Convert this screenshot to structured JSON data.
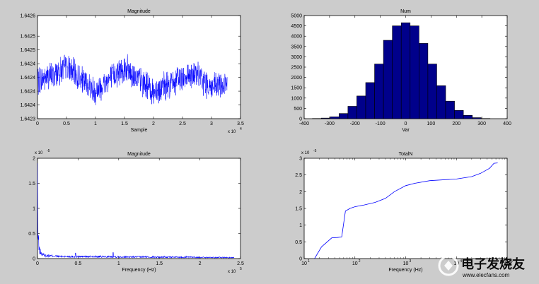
{
  "watermark": {
    "text": "电子发烧友",
    "subtext": "www.elecfans.com"
  },
  "chart_data": [
    {
      "type": "line",
      "title": "Magnitude",
      "xlabel": "Sample",
      "ylabel": "",
      "x_exponent_label": "x 10",
      "x_exponent": "4",
      "xlim": [
        0,
        3.5
      ],
      "ylim": [
        1.6423,
        1.6426
      ],
      "xticks": [
        "0",
        "0.5",
        "1",
        "1.5",
        "2",
        "2.5",
        "3",
        "3.5"
      ],
      "yticks": [
        "1.6423",
        "1.6424",
        "1.6424",
        "1.6424",
        "1.6424",
        "1.6425",
        "1.6425",
        "1.6426"
      ],
      "yticks_values": [
        1.6423,
        1.64234,
        1.64238,
        1.64242,
        1.64246,
        1.6425,
        1.64254,
        1.6426
      ],
      "series": [
        {
          "color": "#0000ff",
          "x_end": 3.27,
          "mean_profile": [
            [
              0,
              1.64241
            ],
            [
              0.3,
              1.64243
            ],
            [
              0.5,
              1.64245
            ],
            [
              0.7,
              1.64242
            ],
            [
              1.0,
              1.64238
            ],
            [
              1.2,
              1.64241
            ],
            [
              1.5,
              1.64245
            ],
            [
              1.7,
              1.64242
            ],
            [
              2.0,
              1.64238
            ],
            [
              2.3,
              1.6424
            ],
            [
              2.6,
              1.64243
            ],
            [
              2.8,
              1.64242
            ],
            [
              3.0,
              1.64239
            ],
            [
              3.27,
              1.6424
            ]
          ],
          "noise_band": 4e-05
        }
      ],
      "grid": false
    },
    {
      "type": "bar",
      "title": "Num",
      "xlabel": "Var",
      "ylabel": "",
      "xlim": [
        -400,
        400
      ],
      "ylim": [
        0,
        5000
      ],
      "xticks": [
        "-400",
        "-300",
        "-200",
        "-100",
        "0",
        "100",
        "200",
        "300",
        "400"
      ],
      "yticks": [
        "0",
        "500",
        "1000",
        "1500",
        "2000",
        "2500",
        "3000",
        "3500",
        "4000",
        "4500",
        "5000"
      ],
      "bin_centers": [
        -350,
        -315,
        -280,
        -245,
        -210,
        -175,
        -140,
        -105,
        -70,
        -35,
        0,
        35,
        70,
        105,
        140,
        175,
        210,
        245,
        280,
        315
      ],
      "bin_width": 35,
      "values": [
        10,
        30,
        90,
        250,
        600,
        1100,
        1750,
        2650,
        3800,
        4500,
        4650,
        4500,
        3650,
        2650,
        1600,
        850,
        400,
        160,
        50,
        10
      ],
      "color": "#00008b",
      "edge_color": "#000000",
      "grid": false
    },
    {
      "type": "line",
      "title": "Magnitude",
      "xlabel": "Frequency (Hz)",
      "ylabel": "",
      "x_exponent_label": "x 10",
      "x_exponent": "5",
      "y_exponent_label": "x 10",
      "y_exponent": "-5",
      "xlim": [
        0,
        2.5
      ],
      "ylim": [
        0,
        2
      ],
      "xticks": [
        "0",
        "0.5",
        "1",
        "1.5",
        "2",
        "2.5"
      ],
      "yticks": [
        "0",
        "0.5",
        "1",
        "1.5",
        "2"
      ],
      "series": [
        {
          "color": "#0000ff",
          "x_end": 2.42,
          "peak_start": 1.9,
          "decay_profile": [
            [
              0,
              1.9
            ],
            [
              0.005,
              0.5
            ],
            [
              0.02,
              0.18
            ],
            [
              0.05,
              0.09
            ],
            [
              0.1,
              0.06
            ],
            [
              0.3,
              0.04
            ],
            [
              1.0,
              0.035
            ],
            [
              2.0,
              0.025
            ],
            [
              2.42,
              0.02
            ]
          ],
          "spikes": [
            [
              0.47,
              0.11
            ],
            [
              0.93,
              0.12
            ],
            [
              1.43,
              0.05
            ],
            [
              1.56,
              0.05
            ],
            [
              1.83,
              0.05
            ]
          ]
        }
      ],
      "grid": false
    },
    {
      "type": "line",
      "title": "TotalN",
      "xlabel": "Frequency (Hz)",
      "ylabel": "",
      "y_exponent_label": "x 10",
      "y_exponent": "-5",
      "xscale": "log",
      "xlim": [
        10,
        100000
      ],
      "ylim": [
        0,
        3
      ],
      "xticks": [
        "10",
        "10",
        "10",
        "10",
        "10"
      ],
      "xticks_exponents": [
        "1",
        "2",
        "3",
        "4",
        "5"
      ],
      "xticks_values": [
        10,
        100,
        1000,
        10000,
        100000
      ],
      "yticks": [
        "0",
        "0.5",
        "1",
        "1.5",
        "2",
        "2.5",
        "3"
      ],
      "series": [
        {
          "color": "#0000ff",
          "points": [
            [
              16,
              0
            ],
            [
              22,
              0.35
            ],
            [
              35,
              0.62
            ],
            [
              45,
              0.63
            ],
            [
              55,
              0.65
            ],
            [
              65,
              1.42
            ],
            [
              80,
              1.5
            ],
            [
              100,
              1.55
            ],
            [
              150,
              1.6
            ],
            [
              250,
              1.68
            ],
            [
              400,
              1.8
            ],
            [
              600,
              2.0
            ],
            [
              1000,
              2.18
            ],
            [
              1500,
              2.25
            ],
            [
              3000,
              2.33
            ],
            [
              10000,
              2.38
            ],
            [
              20000,
              2.45
            ],
            [
              30000,
              2.55
            ],
            [
              45000,
              2.7
            ],
            [
              55000,
              2.85
            ],
            [
              65000,
              2.86
            ]
          ]
        }
      ],
      "grid": false
    }
  ]
}
